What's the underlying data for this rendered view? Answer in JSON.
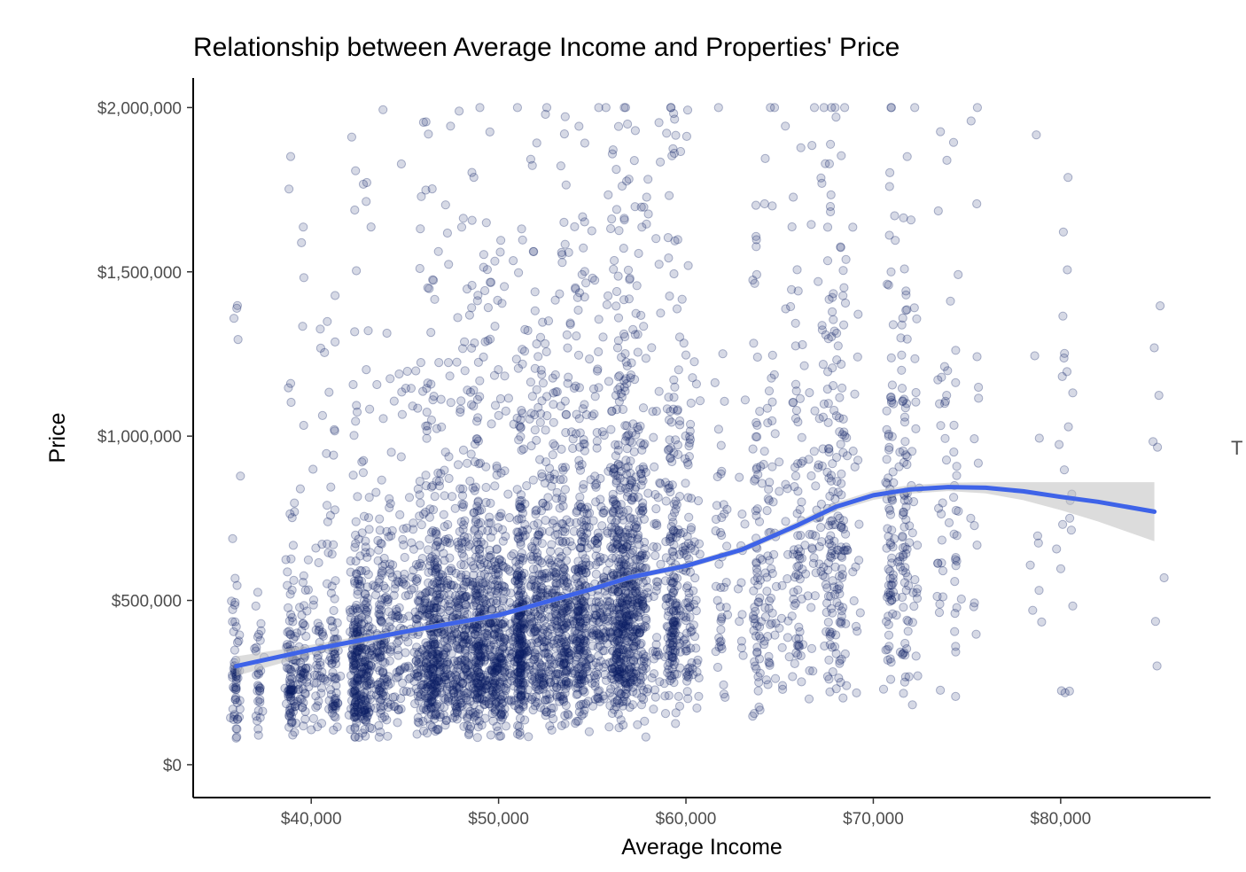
{
  "chart_data": {
    "type": "scatter",
    "title": "Relationship between Average Income and Properties' Price",
    "xlabel": "Average Income",
    "ylabel": "Price",
    "xlim": [
      33700,
      88000
    ],
    "ylim": [
      -100000,
      2090000
    ],
    "x_ticks": [
      {
        "value": 40000,
        "label": "$40,000"
      },
      {
        "value": 50000,
        "label": "$50,000"
      },
      {
        "value": 60000,
        "label": "$60,000"
      },
      {
        "value": 70000,
        "label": "$70,000"
      },
      {
        "value": 80000,
        "label": "$80,000"
      }
    ],
    "y_ticks": [
      {
        "value": 0,
        "label": "$0"
      },
      {
        "value": 500000,
        "label": "$500,000"
      },
      {
        "value": 1000000,
        "label": "$1,000,000"
      },
      {
        "value": 1500000,
        "label": "$1,500,000"
      },
      {
        "value": 2000000,
        "label": "$2,000,000"
      }
    ],
    "grid": false,
    "legend": "none",
    "edge_label": "T",
    "colors": {
      "points": "#0b1f63",
      "smooth_line": "#3e63e8",
      "confidence_band": "#bfbfbf",
      "axis": "#000000"
    },
    "points_description": "~10000 semi-transparent points, prices $100,000-$2,000,000, incomes $36,000-$85,000",
    "smooth": {
      "method": "loess",
      "x": [
        36000,
        40000,
        45000,
        50000,
        55000,
        57000,
        60000,
        63000,
        66000,
        68000,
        70000,
        72000,
        74000,
        76000,
        78000,
        80000,
        82000,
        85000
      ],
      "y": [
        300000,
        350000,
        405000,
        455000,
        535000,
        570000,
        605000,
        655000,
        730000,
        785000,
        820000,
        838000,
        845000,
        843000,
        832000,
        815000,
        800000,
        770000
      ],
      "lower": [
        270000,
        335000,
        395000,
        447000,
        527000,
        561000,
        596000,
        645000,
        718000,
        772000,
        806000,
        825000,
        833000,
        826000,
        805000,
        775000,
        740000,
        680000
      ],
      "upper": [
        330000,
        365000,
        415000,
        463000,
        543000,
        579000,
        614000,
        665000,
        742000,
        798000,
        834000,
        851000,
        858000,
        860000,
        860000,
        860000,
        860000,
        860000
      ]
    }
  }
}
